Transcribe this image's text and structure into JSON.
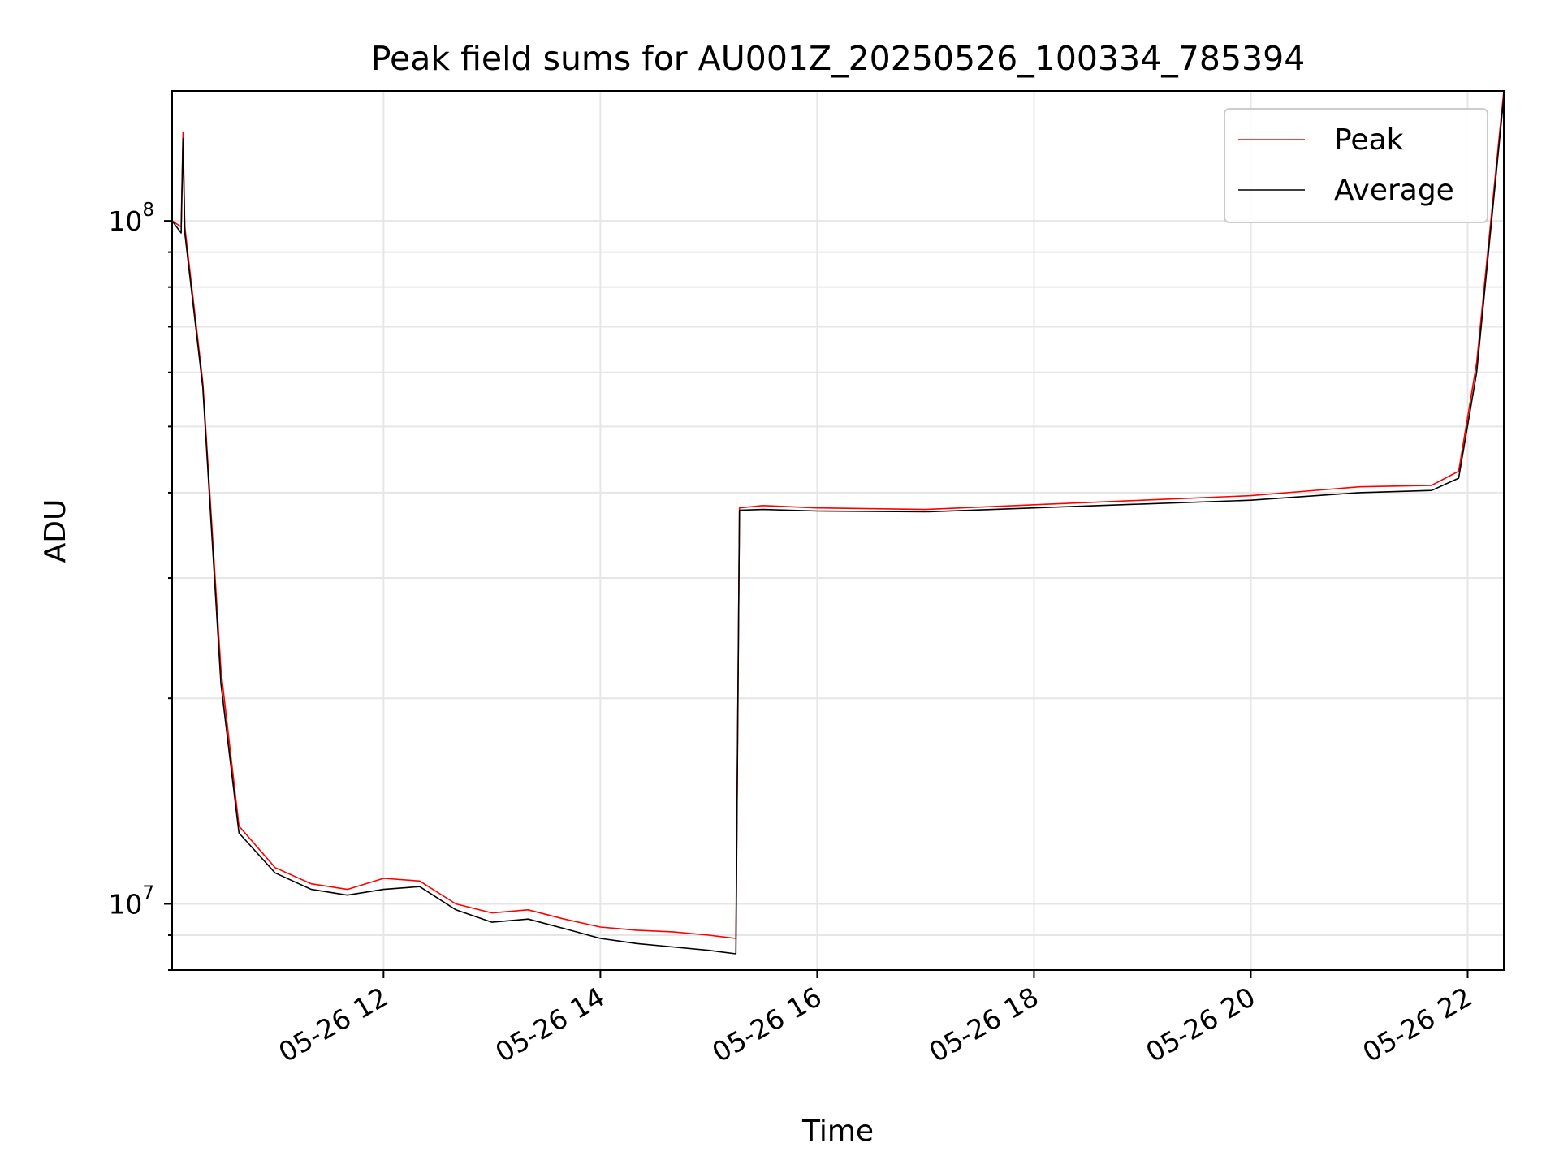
{
  "chart_data": {
    "type": "line",
    "title": "Peak field sums for AU001Z_20250526_100334_785394",
    "xlabel": "Time",
    "ylabel": "ADU",
    "y_scale": "log",
    "xlim": [
      "2025-05-26 10:03",
      "2025-05-26 22:20"
    ],
    "ylim": [
      8000000,
      155000000
    ],
    "grid": true,
    "legend_position": "upper right",
    "x_ticks": [
      "05-26 12",
      "05-26 14",
      "05-26 16",
      "05-26 18",
      "05-26 20",
      "05-26 22"
    ],
    "y_ticks": [
      {
        "base": "10",
        "exp": "7",
        "value": 10000000
      },
      {
        "base": "10",
        "exp": "8",
        "value": 100000000
      }
    ],
    "series": [
      {
        "name": "Peak",
        "color": "#ff0000",
        "x": [
          "2025-05-26 10:03",
          "2025-05-26 10:08",
          "2025-05-26 10:09",
          "2025-05-26 10:10",
          "2025-05-26 10:20",
          "2025-05-26 10:30",
          "2025-05-26 10:40",
          "2025-05-26 11:00",
          "2025-05-26 11:20",
          "2025-05-26 11:40",
          "2025-05-26 12:00",
          "2025-05-26 12:20",
          "2025-05-26 12:40",
          "2025-05-26 13:00",
          "2025-05-26 13:20",
          "2025-05-26 13:40",
          "2025-05-26 14:00",
          "2025-05-26 14:20",
          "2025-05-26 14:40",
          "2025-05-26 15:00",
          "2025-05-26 15:15",
          "2025-05-26 15:17",
          "2025-05-26 15:30",
          "2025-05-26 16:00",
          "2025-05-26 17:00",
          "2025-05-26 18:00",
          "2025-05-26 19:00",
          "2025-05-26 20:00",
          "2025-05-26 21:00",
          "2025-05-26 21:40",
          "2025-05-26 21:55",
          "2025-05-26 22:05",
          "2025-05-26 22:20"
        ],
        "y": [
          100000000,
          98000000,
          135000000,
          98000000,
          58000000,
          22000000,
          13000000,
          11300000,
          10700000,
          10500000,
          10900000,
          10800000,
          10000000,
          9700000,
          9800000,
          9500000,
          9250000,
          9150000,
          9100000,
          9000000,
          8900000,
          38000000,
          38300000,
          38000000,
          37800000,
          38400000,
          39000000,
          39600000,
          40800000,
          41000000,
          43000000,
          62000000,
          155000000
        ]
      },
      {
        "name": "Average",
        "color": "#000000",
        "x": [
          "2025-05-26 10:03",
          "2025-05-26 10:08",
          "2025-05-26 10:09",
          "2025-05-26 10:10",
          "2025-05-26 10:20",
          "2025-05-26 10:30",
          "2025-05-26 10:40",
          "2025-05-26 11:00",
          "2025-05-26 11:20",
          "2025-05-26 11:40",
          "2025-05-26 12:00",
          "2025-05-26 12:20",
          "2025-05-26 12:40",
          "2025-05-26 13:00",
          "2025-05-26 13:20",
          "2025-05-26 13:40",
          "2025-05-26 14:00",
          "2025-05-26 14:20",
          "2025-05-26 14:40",
          "2025-05-26 15:00",
          "2025-05-26 15:15",
          "2025-05-26 15:17",
          "2025-05-26 15:30",
          "2025-05-26 16:00",
          "2025-05-26 17:00",
          "2025-05-26 18:00",
          "2025-05-26 19:00",
          "2025-05-26 20:00",
          "2025-05-26 21:00",
          "2025-05-26 21:40",
          "2025-05-26 21:55",
          "2025-05-26 22:05",
          "2025-05-26 22:20"
        ],
        "y": [
          100000000,
          96000000,
          132000000,
          96000000,
          57000000,
          21000000,
          12700000,
          11100000,
          10500000,
          10300000,
          10500000,
          10600000,
          9800000,
          9400000,
          9500000,
          9200000,
          8900000,
          8750000,
          8650000,
          8550000,
          8450000,
          37700000,
          37800000,
          37600000,
          37500000,
          38000000,
          38500000,
          39000000,
          40000000,
          40300000,
          42000000,
          60000000,
          152000000
        ]
      }
    ]
  }
}
